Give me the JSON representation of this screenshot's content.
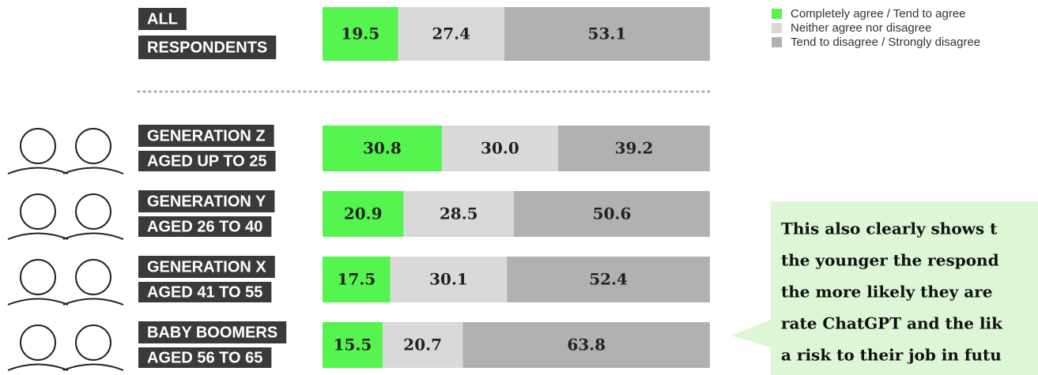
{
  "chart_data": {
    "type": "stacked-bar",
    "categories": [
      [
        "ALL",
        "RESPONDENTS"
      ],
      [
        "GENERATION Z",
        "AGED UP TO 25"
      ],
      [
        "GENERATION Y",
        "AGED 26 TO 40"
      ],
      [
        "GENERATION X",
        "AGED 41 TO 55"
      ],
      [
        "BABY BOOMERS",
        "AGED 56 TO 65"
      ]
    ],
    "series": [
      {
        "name": "Completely agree / Tend to agree",
        "color": "#55f44f",
        "values": [
          19.5,
          30.8,
          20.9,
          17.5,
          15.5
        ],
        "value_labels": [
          "19.5",
          "30.8",
          "20.9",
          "17.5",
          "15.5"
        ]
      },
      {
        "name": "Neither agree nor disagree",
        "color": "#d9d9d9",
        "values": [
          27.4,
          30.0,
          28.5,
          30.1,
          20.7
        ],
        "value_labels": [
          "27.4",
          "30.0",
          "28.5",
          "30.1",
          "20.7"
        ]
      },
      {
        "name": "Tend to disagree / Strongly disagree",
        "color": "#b1b1b1",
        "values": [
          53.1,
          39.2,
          50.6,
          52.4,
          63.8
        ],
        "value_labels": [
          "53.1",
          "39.2",
          "50.6",
          "52.4",
          "63.8"
        ]
      }
    ],
    "xlim": [
      0,
      100
    ],
    "legend": "top-right",
    "annotation": [
      "This also clearly shows t",
      "the younger the respond",
      "the more likely they are",
      "rate ChatGPT and the lik",
      "a risk to their job in futu"
    ]
  }
}
